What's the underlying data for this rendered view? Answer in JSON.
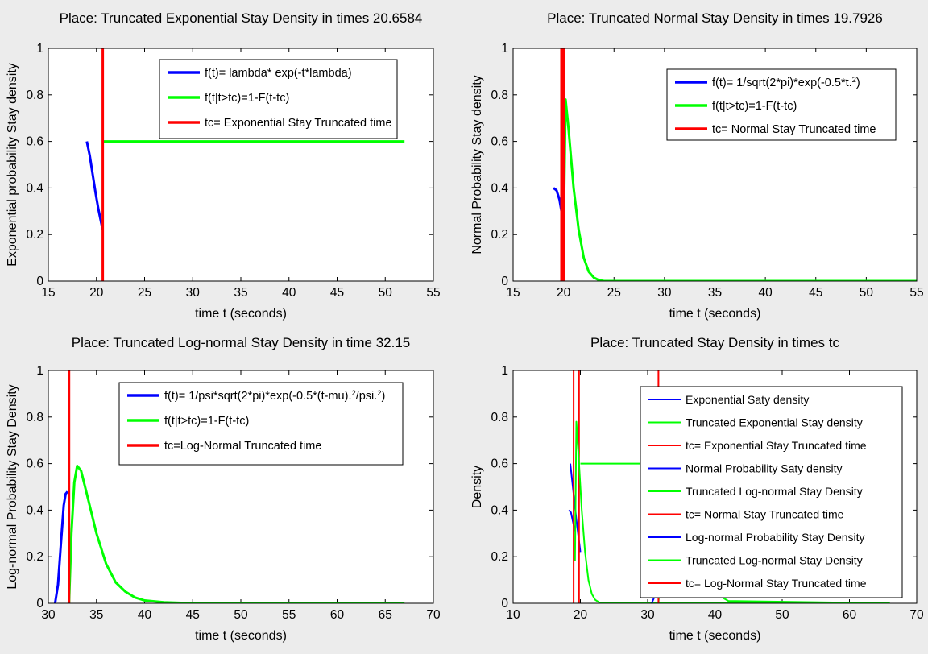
{
  "chart_data": [
    {
      "type": "line",
      "title": "Place: Truncated Exponential Stay Density in times 20.6584",
      "xlabel": "time t (seconds)",
      "ylabel": "Exponential probability Stay density",
      "xlim": [
        15,
        55
      ],
      "ylim": [
        0,
        1
      ],
      "xticks": [
        "15",
        "20",
        "25",
        "30",
        "35",
        "40",
        "45",
        "50",
        "55"
      ],
      "yticks": [
        "0",
        "0.2",
        "0.4",
        "0.6",
        "0.8",
        "1"
      ],
      "legend_position": "top-right",
      "series": [
        {
          "name": "f(t)= lambda* exp(-t*lambda)",
          "color": "#0000ff",
          "x": [
            19,
            19.3,
            19.6,
            19.9,
            20.2,
            20.5,
            20.66
          ],
          "y": [
            0.6,
            0.54,
            0.46,
            0.38,
            0.31,
            0.25,
            0.22
          ]
        },
        {
          "name": "f(t|t>tc)=1-F(t-tc)",
          "color": "#00ff00",
          "x": [
            20.66,
            52
          ],
          "y": [
            0.6,
            0.6
          ]
        },
        {
          "name": "tc= Exponential Stay Truncated time",
          "color": "#ff0000",
          "x": [
            20.66,
            20.66
          ],
          "y": [
            0,
            1
          ]
        }
      ]
    },
    {
      "type": "line",
      "title": "Place: Truncated Normal Stay Density in times 19.7926",
      "xlabel": "time t (seconds)",
      "ylabel": "Normal Probability Stay density",
      "xlim": [
        15,
        55
      ],
      "ylim": [
        0,
        1
      ],
      "xticks": [
        "15",
        "20",
        "25",
        "30",
        "35",
        "40",
        "45",
        "50",
        "55"
      ],
      "yticks": [
        "0",
        "0.2",
        "0.4",
        "0.6",
        "0.8",
        "1"
      ],
      "legend_position": "top-right",
      "series": [
        {
          "name": "f(t)= 1/sqrt(2*pi)*exp(-0.5*t.",
          "name_sup": "2",
          "name_end": ")",
          "color": "#0000ff",
          "x": [
            19,
            19.3,
            19.6,
            19.79
          ],
          "y": [
            0.4,
            0.39,
            0.35,
            0.3
          ]
        },
        {
          "name": "f(t|t>tc)=1-F(t-tc)",
          "color": "#00ff00",
          "x": [
            20,
            20.2,
            20.5,
            21,
            21.5,
            22,
            22.5,
            23,
            23.5,
            24,
            55
          ],
          "y": [
            0.18,
            0.78,
            0.65,
            0.4,
            0.22,
            0.1,
            0.04,
            0.015,
            0.004,
            0.0,
            0.0
          ]
        },
        {
          "name": "tc= Normal Stay Truncated time",
          "color": "#ff0000",
          "x": [
            19.79,
            19.79,
            20.0,
            20.0
          ],
          "y": [
            0,
            1,
            1,
            0
          ]
        }
      ]
    },
    {
      "type": "line",
      "title": "Place: Truncated Log-normal Stay Density in time 32.15",
      "xlabel": "time t (seconds)",
      "ylabel": "Log-normal Probability Stay Density",
      "xlim": [
        30,
        70
      ],
      "ylim": [
        0,
        1
      ],
      "xticks": [
        "30",
        "35",
        "40",
        "45",
        "50",
        "55",
        "60",
        "65",
        "70"
      ],
      "yticks": [
        "0",
        "0.2",
        "0.4",
        "0.6",
        "0.8",
        "1"
      ],
      "legend_position": "top-right",
      "series": [
        {
          "name": "f(t)= 1/psi*sqrt(2*pi)*exp(-0.5*(t-mu).",
          "name_sup": "2",
          "name_mid": "/psi.",
          "name_sup2": "2",
          "name_end": ")",
          "color": "#0000ff",
          "x": [
            30.7,
            31.0,
            31.3,
            31.6,
            31.8,
            32.0
          ],
          "y": [
            0.0,
            0.08,
            0.25,
            0.42,
            0.47,
            0.48
          ]
        },
        {
          "name": "f(t|t>tc)=1-F(t-tc)",
          "color": "#00ff00",
          "x": [
            32.15,
            32.4,
            32.7,
            33.0,
            33.4,
            34,
            35,
            36,
            37,
            38,
            39,
            40,
            42,
            45,
            50,
            67
          ],
          "y": [
            0.0,
            0.3,
            0.52,
            0.59,
            0.57,
            0.47,
            0.3,
            0.17,
            0.09,
            0.05,
            0.025,
            0.012,
            0.004,
            0.0,
            0.0,
            0.0
          ]
        },
        {
          "name": "tc=Log-Normal Truncated time",
          "color": "#ff0000",
          "x": [
            32.15,
            32.15
          ],
          "y": [
            0,
            1
          ]
        }
      ]
    },
    {
      "type": "line",
      "title": "Place: Truncated Stay Density in times tc",
      "xlabel": "time t (seconds)",
      "ylabel": "Density",
      "xlim": [
        10,
        70
      ],
      "ylim": [
        0,
        1
      ],
      "xticks": [
        "10",
        "20",
        "30",
        "40",
        "50",
        "60",
        "70"
      ],
      "yticks": [
        "0",
        "0.2",
        "0.4",
        "0.6",
        "0.8",
        "1"
      ],
      "legend_position": "top-right",
      "series": [
        {
          "name": "Exponential Saty density",
          "color": "#0000ff",
          "x": [
            18.5,
            18.8,
            19.1,
            19.4,
            19.7,
            20.0
          ],
          "y": [
            0.6,
            0.52,
            0.44,
            0.36,
            0.29,
            0.22
          ]
        },
        {
          "name": "Truncated Exponential Stay density",
          "color": "#00ff00",
          "x": [
            20.0,
            52
          ],
          "y": [
            0.6,
            0.6
          ]
        },
        {
          "name": "tc= Exponential Stay Truncated time",
          "color": "#ff0000",
          "x": [
            19.8,
            19.8
          ],
          "y": [
            0,
            1
          ]
        },
        {
          "name": "Normal Probability Saty density",
          "color": "#0000ff",
          "x": [
            18.3,
            18.6,
            18.9,
            19.2
          ],
          "y": [
            0.4,
            0.39,
            0.35,
            0.31
          ]
        },
        {
          "name": "Truncated Log-normal Stay Density",
          "color": "#00ff00",
          "x": [
            19.2,
            19.4,
            19.7,
            20.2,
            20.7,
            21.2,
            21.7,
            22.2,
            23,
            66
          ],
          "y": [
            0.18,
            0.78,
            0.65,
            0.4,
            0.22,
            0.1,
            0.04,
            0.015,
            0.0,
            0.0
          ]
        },
        {
          "name": "tc= Normal Stay Truncated time",
          "color": "#ff0000",
          "x": [
            19.0,
            19.0
          ],
          "y": [
            0,
            1
          ]
        },
        {
          "name": "Log-normal Probability Stay Density",
          "color": "#0000ff",
          "x": [
            30.6,
            30.9,
            31.2,
            31.5
          ],
          "y": [
            0.0,
            0.02,
            0.04,
            0.05
          ]
        },
        {
          "name": "Truncated Log-normal Stay Density",
          "color": "#00ff00",
          "x": [
            31.6,
            32.5,
            34,
            35.5,
            37,
            39,
            42,
            66
          ],
          "y": [
            0.0,
            0.35,
            0.55,
            0.38,
            0.18,
            0.06,
            0.01,
            0.0
          ]
        },
        {
          "name": "tc= Log-Normal Stay Truncated time",
          "color": "#ff0000",
          "x": [
            31.6,
            31.6
          ],
          "y": [
            0,
            1
          ]
        }
      ]
    }
  ]
}
